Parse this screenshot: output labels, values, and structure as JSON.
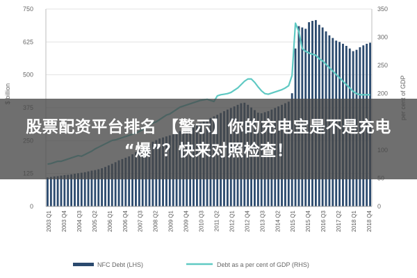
{
  "banner": {
    "line1": "股票配资平台排名 【警示】你的充电宝是不是充电",
    "line2": "“爆”？快来对照检查！"
  },
  "chart_data": {
    "type": "bar+line",
    "title": "",
    "left_axis": {
      "label": "$ billion",
      "ticks": [
        0,
        125,
        250,
        375,
        500,
        625,
        750
      ],
      "ylim": [
        0,
        750
      ]
    },
    "right_axis": {
      "label": "per cent of GDP",
      "ticks": [
        0,
        50,
        100,
        150,
        200,
        250,
        300,
        350
      ],
      "ylim": [
        0,
        350
      ]
    },
    "x_tick_labels": [
      "2003 Q1",
      "2003 Q4",
      "2004 Q3",
      "2005 Q2",
      "2006 Q1",
      "2006 Q4",
      "2007 Q3",
      "2008 Q2",
      "2009 Q1",
      "2009 Q4",
      "2010 Q3",
      "2011 Q2",
      "2012 Q1",
      "2012 Q4",
      "2013 Q3",
      "2014 Q2",
      "2015 Q1",
      "2015 Q4",
      "2016 Q3",
      "2017 Q2",
      "2018 Q1",
      "2018 Q4"
    ],
    "series": [
      {
        "name": "NFC Debt (LHS)",
        "kind": "bar",
        "axis": "left",
        "color": "#2b4a6e",
        "values": [
          110,
          112,
          114,
          115,
          117,
          119,
          120,
          122,
          124,
          126,
          128,
          130,
          133,
          136,
          138,
          141,
          145,
          150,
          156,
          162,
          168,
          175,
          180,
          185,
          190,
          198,
          206,
          214,
          222,
          230,
          238,
          246,
          252,
          258,
          262,
          266,
          270,
          274,
          280,
          286,
          292,
          298,
          303,
          308,
          313,
          318,
          323,
          330,
          336,
          342,
          348,
          355,
          362,
          368,
          374,
          380,
          386,
          392,
          394,
          386,
          376,
          366,
          356,
          354,
          358,
          362,
          368,
          374,
          380,
          386,
          392,
          398,
          430,
          600,
          685,
          680,
          675,
          700,
          705,
          708,
          690,
          680,
          665,
          650,
          640,
          630,
          625,
          618,
          610,
          600,
          590,
          595,
          605,
          612,
          618,
          622
        ]
      },
      {
        "name": "Debt as a per cent of GDP (RHS)",
        "kind": "line",
        "axis": "right",
        "color": "#5fc9c3",
        "values": [
          75,
          76,
          78,
          80,
          80,
          82,
          84,
          86,
          88,
          90,
          89,
          92,
          95,
          98,
          102,
          105,
          108,
          111,
          114,
          117,
          118,
          120,
          122,
          124,
          126,
          128,
          130,
          133,
          136,
          140,
          144,
          148,
          150,
          154,
          158,
          162,
          164,
          168,
          172,
          176,
          178,
          180,
          182,
          184,
          186,
          188,
          189,
          190,
          188,
          186,
          196,
          198,
          199,
          200,
          202,
          206,
          210,
          216,
          222,
          226,
          226,
          220,
          212,
          205,
          200,
          199,
          201,
          203,
          205,
          207,
          210,
          214,
          232,
          325,
          310,
          280,
          275,
          272,
          270,
          268,
          262,
          258,
          252,
          246,
          240,
          234,
          228,
          222,
          216,
          210,
          204,
          200,
          198,
          198,
          198,
          198
        ]
      }
    ]
  },
  "legend": {
    "bar_label": "NFC Debt (LHS)",
    "line_label": "Debt as a per cent of GDP (RHS)"
  }
}
